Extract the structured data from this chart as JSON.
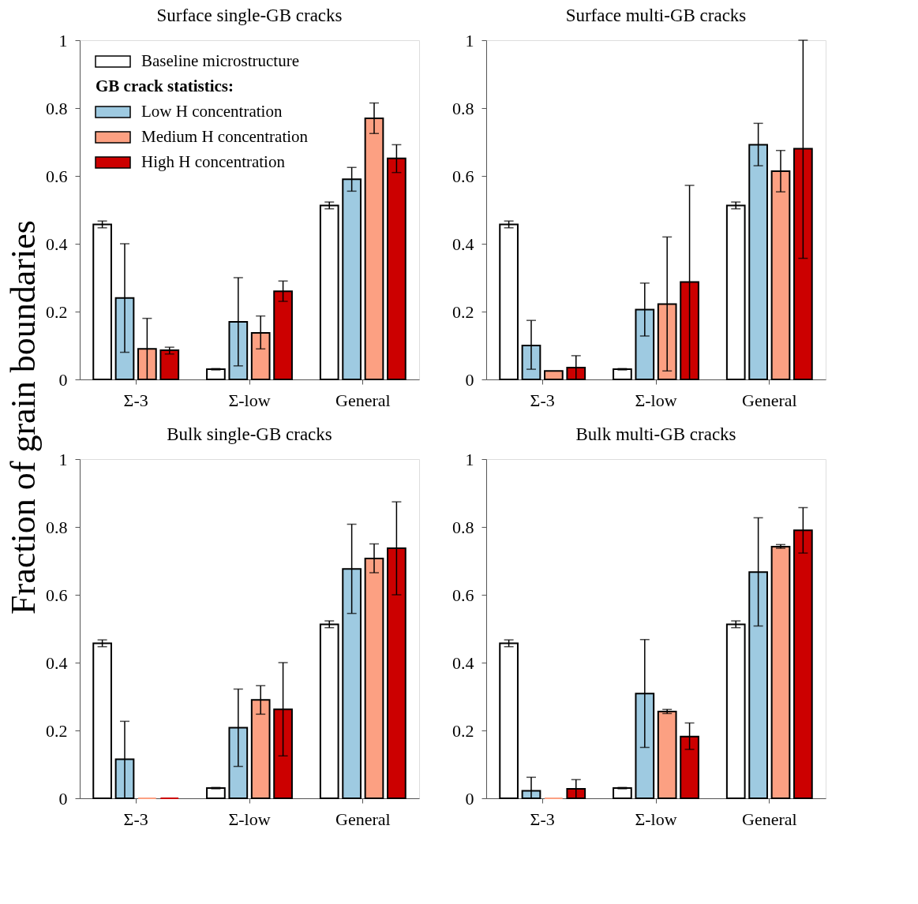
{
  "chart_data": [
    {
      "type": "bar",
      "title": "Surface single-GB cracks",
      "ylabel": "Fraction of grain boundaries",
      "categories": [
        "Σ-3",
        "Σ-low",
        "General"
      ],
      "ylim": [
        0,
        1
      ],
      "yticks": [
        0,
        0.2,
        0.4,
        0.6,
        0.8,
        1
      ],
      "grid": false,
      "legend": "top left",
      "legend_title": "GB crack statistics:",
      "series": [
        {
          "name": "Baseline microstructure",
          "color": "#ffffff",
          "values": [
            0.457,
            0.03,
            0.513
          ],
          "errors": [
            0.01,
            0.002,
            0.01
          ]
        },
        {
          "name": "Low H concentration",
          "color": "#9ecae1",
          "values": [
            0.24,
            0.17,
            0.59
          ],
          "errors": [
            [
              0.08,
              0.4
            ],
            [
              0.04,
              0.3
            ],
            [
              0.555,
              0.625
            ]
          ]
        },
        {
          "name": "Medium H concentration",
          "color": "#fca082",
          "values": [
            0.09,
            0.137,
            0.77
          ],
          "errors": [
            [
              0,
              0.18
            ],
            [
              0.09,
              0.187
            ],
            [
              0.725,
              0.815
            ]
          ]
        },
        {
          "name": "High H concentration",
          "color": "#cc0000",
          "values": [
            0.086,
            0.26,
            0.652
          ],
          "errors": [
            [
              0.075,
              0.095
            ],
            [
              0.23,
              0.29
            ],
            [
              0.61,
              0.692
            ]
          ]
        }
      ]
    },
    {
      "type": "bar",
      "title": "Surface multi-GB cracks",
      "categories": [
        "Σ-3",
        "Σ-low",
        "General"
      ],
      "ylim": [
        0,
        1
      ],
      "yticks": [
        0,
        0.2,
        0.4,
        0.6,
        0.8,
        1
      ],
      "grid": false,
      "series": [
        {
          "color": "#ffffff",
          "values": [
            0.457,
            0.03,
            0.513
          ],
          "errors": [
            0.01,
            0.002,
            0.01
          ]
        },
        {
          "color": "#9ecae1",
          "values": [
            0.1,
            0.206,
            0.692
          ],
          "errors": [
            [
              0.03,
              0.174
            ],
            [
              0.128,
              0.284
            ],
            [
              0.63,
              0.755
            ]
          ]
        },
        {
          "color": "#fca082",
          "values": [
            0.025,
            0.222,
            0.614
          ],
          "errors": [
            null,
            [
              0.025,
              0.42
            ],
            [
              0.553,
              0.675
            ]
          ]
        },
        {
          "color": "#cc0000",
          "values": [
            0.035,
            0.287,
            0.68
          ],
          "errors": [
            [
              0,
              0.07
            ],
            [
              0,
              0.572
            ],
            [
              0.357,
              1.0
            ]
          ]
        }
      ]
    },
    {
      "type": "bar",
      "title": "Bulk single-GB cracks",
      "categories": [
        "Σ-3",
        "Σ-low",
        "General"
      ],
      "ylim": [
        0,
        1
      ],
      "yticks": [
        0,
        0.2,
        0.4,
        0.6,
        0.8,
        1
      ],
      "grid": false,
      "series": [
        {
          "color": "#ffffff",
          "values": [
            0.457,
            0.03,
            0.513
          ],
          "errors": [
            0.01,
            0.002,
            0.01
          ]
        },
        {
          "color": "#9ecae1",
          "values": [
            0.115,
            0.208,
            0.676
          ],
          "errors": [
            [
              0,
              0.227
            ],
            [
              0.094,
              0.322
            ],
            [
              0.545,
              0.808
            ]
          ]
        },
        {
          "color": "#fca082",
          "values": [
            0,
            0.29,
            0.707
          ],
          "errors": [
            null,
            [
              0.248,
              0.332
            ],
            [
              0.665,
              0.75
            ]
          ]
        },
        {
          "color": "#cc0000",
          "values": [
            0,
            0.262,
            0.737
          ],
          "errors": [
            null,
            [
              0.125,
              0.4
            ],
            [
              0.6,
              0.874
            ]
          ]
        }
      ]
    },
    {
      "type": "bar",
      "title": "Bulk multi-GB cracks",
      "categories": [
        "Σ-3",
        "Σ-low",
        "General"
      ],
      "ylim": [
        0,
        1
      ],
      "yticks": [
        0,
        0.2,
        0.4,
        0.6,
        0.8,
        1
      ],
      "grid": false,
      "series": [
        {
          "color": "#ffffff",
          "values": [
            0.457,
            0.03,
            0.513
          ],
          "errors": [
            0.01,
            0.002,
            0.01
          ]
        },
        {
          "color": "#9ecae1",
          "values": [
            0.022,
            0.309,
            0.667
          ],
          "errors": [
            [
              0,
              0.062
            ],
            [
              0.15,
              0.468
            ],
            [
              0.508,
              0.827
            ]
          ]
        },
        {
          "color": "#fca082",
          "values": [
            0,
            0.256,
            0.742
          ],
          "errors": [
            null,
            [
              0.25,
              0.262
            ],
            [
              0.737,
              0.748
            ]
          ]
        },
        {
          "color": "#cc0000",
          "values": [
            0.028,
            0.182,
            0.79
          ],
          "errors": [
            [
              0,
              0.055
            ],
            [
              0.144,
              0.222
            ],
            [
              0.723,
              0.857
            ]
          ]
        }
      ]
    }
  ]
}
